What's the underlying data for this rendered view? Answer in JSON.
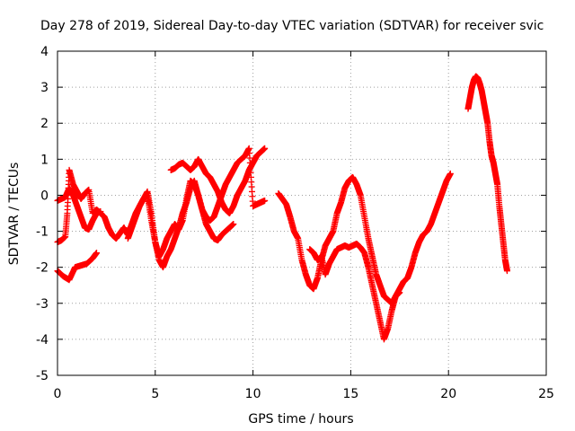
{
  "chart_data": {
    "type": "scatter",
    "title": "Day 278 of 2019, Sidereal Day-to-day VTEC variation (SDTVAR) for receiver svic",
    "xlabel": "GPS time / hours",
    "ylabel": "SDTVAR / TECUs",
    "xlim": [
      0,
      25
    ],
    "ylim": [
      -5,
      4
    ],
    "xticks": [
      0,
      5,
      10,
      15,
      20,
      25
    ],
    "yticks": [
      -5,
      -4,
      -3,
      -2,
      -1,
      0,
      1,
      2,
      3,
      4
    ],
    "grid": true,
    "marker": "+",
    "color": "#ff0000",
    "series": [
      {
        "name": "s1",
        "x": [
          0.0,
          0.3,
          0.6,
          0.9,
          1.2,
          1.5,
          1.8,
          2.0
        ],
        "y": [
          -2.1,
          -2.25,
          -2.35,
          -2.0,
          -1.95,
          -1.9,
          -1.75,
          -1.6
        ]
      },
      {
        "name": "s2",
        "x": [
          0.0,
          0.2,
          0.4,
          0.5,
          0.6,
          0.8,
          1.0,
          1.2,
          1.4,
          1.6,
          1.8,
          2.0,
          2.2,
          2.4,
          2.6,
          2.8,
          3.0,
          3.2,
          3.4,
          3.6,
          3.8,
          4.0,
          4.2,
          4.4,
          4.6,
          4.8,
          5.0,
          5.2,
          5.4,
          5.6,
          5.8,
          6.0,
          6.2,
          6.4,
          6.6,
          6.8,
          7.0,
          7.2,
          7.4,
          7.6,
          7.8,
          8.0,
          8.2,
          8.4,
          8.6,
          8.8,
          9.0
        ],
        "y": [
          -1.3,
          -1.25,
          -1.15,
          -0.5,
          0.7,
          0.3,
          0.1,
          -0.1,
          0.05,
          0.15,
          -0.5,
          -0.4,
          -0.5,
          -0.6,
          -0.9,
          -1.1,
          -1.2,
          -1.05,
          -0.9,
          -1.1,
          -0.8,
          -0.5,
          -0.3,
          -0.1,
          0.0,
          -0.7,
          -1.3,
          -1.7,
          -1.5,
          -1.2,
          -1.0,
          -0.8,
          -0.95,
          -0.7,
          -0.1,
          0.4,
          0.3,
          0.0,
          -0.4,
          -0.8,
          -1.0,
          -1.2,
          -1.25,
          -1.1,
          -1.0,
          -0.9,
          -0.8
        ]
      },
      {
        "name": "s3",
        "x": [
          0.0,
          0.2,
          0.4,
          0.6,
          0.8,
          1.0,
          1.2,
          1.4,
          1.6,
          1.8,
          2.0,
          2.2
        ],
        "y": [
          -0.15,
          -0.1,
          -0.05,
          0.2,
          0.0,
          -0.3,
          -0.6,
          -0.9,
          -0.95,
          -0.7,
          -0.5,
          -0.45
        ]
      },
      {
        "name": "s4",
        "x": [
          3.6,
          3.8,
          4.0,
          4.2,
          4.4,
          4.6,
          4.8,
          5.0,
          5.2,
          5.4,
          5.6,
          5.8,
          6.0,
          6.2,
          6.4,
          6.6,
          6.8,
          7.0,
          7.2,
          7.4,
          7.6,
          7.8,
          8.0,
          8.2,
          8.4,
          8.6,
          8.8,
          9.0,
          9.2,
          9.4,
          9.6,
          9.8,
          10.0,
          10.2,
          10.4,
          10.6
        ],
        "y": [
          -1.2,
          -0.9,
          -0.6,
          -0.3,
          -0.1,
          0.1,
          -0.5,
          -1.3,
          -1.8,
          -2.0,
          -1.7,
          -1.5,
          -1.2,
          -0.9,
          -0.5,
          -0.2,
          0.2,
          0.4,
          0.0,
          -0.4,
          -0.6,
          -0.7,
          -0.6,
          -0.3,
          0.0,
          0.3,
          0.5,
          0.7,
          0.9,
          1.0,
          1.1,
          1.3,
          -0.3,
          -0.25,
          -0.2,
          -0.15
        ]
      },
      {
        "name": "s5",
        "x": [
          5.8,
          6.0,
          6.2,
          6.4,
          6.6,
          6.8,
          7.0,
          7.2,
          7.4,
          7.6,
          7.8,
          8.0,
          8.2,
          8.4,
          8.6,
          8.8,
          9.0,
          9.2,
          9.4,
          9.6,
          9.8,
          10.0,
          10.2,
          10.4,
          10.6
        ],
        "y": [
          0.7,
          0.75,
          0.85,
          0.9,
          0.8,
          0.7,
          0.8,
          1.0,
          0.8,
          0.6,
          0.5,
          0.3,
          0.1,
          -0.2,
          -0.4,
          -0.5,
          -0.3,
          0.0,
          0.2,
          0.4,
          0.7,
          0.9,
          1.1,
          1.2,
          1.3
        ]
      },
      {
        "name": "s6",
        "x": [
          11.3,
          11.5,
          11.7,
          11.9,
          12.1,
          12.3,
          12.5,
          12.7,
          12.9,
          13.1,
          13.3,
          13.5,
          13.7,
          13.9,
          14.1,
          14.3,
          14.5,
          14.7,
          14.9,
          15.1,
          15.3,
          15.5,
          15.7,
          15.9,
          16.1,
          16.3,
          16.5,
          16.7,
          16.9,
          17.1,
          17.3,
          17.5,
          17.7,
          17.9,
          18.1,
          18.3,
          18.5,
          18.7,
          18.9,
          19.1,
          19.3,
          19.5,
          19.7,
          19.9,
          20.1
        ],
        "y": [
          0.05,
          -0.1,
          -0.25,
          -0.6,
          -1.0,
          -1.2,
          -1.8,
          -2.2,
          -2.5,
          -2.6,
          -2.3,
          -1.8,
          -1.4,
          -1.2,
          -1.0,
          -0.5,
          -0.2,
          0.2,
          0.4,
          0.5,
          0.3,
          0.0,
          -0.6,
          -1.2,
          -1.7,
          -2.2,
          -2.5,
          -2.8,
          -2.9,
          -3.0,
          -2.8,
          -2.6,
          -2.4,
          -2.3,
          -2.0,
          -1.6,
          -1.3,
          -1.1,
          -1.0,
          -0.8,
          -0.5,
          -0.2,
          0.1,
          0.4,
          0.6
        ]
      },
      {
        "name": "s7",
        "x": [
          12.9,
          13.1,
          13.3,
          13.5,
          13.7,
          13.9,
          14.1,
          14.3,
          14.5,
          14.7,
          14.9,
          15.1,
          15.3,
          15.5,
          15.7,
          15.9,
          16.1,
          16.3,
          16.5,
          16.7,
          16.9,
          17.1,
          17.3,
          17.5
        ],
        "y": [
          -1.5,
          -1.6,
          -1.8,
          -1.7,
          -2.2,
          -1.9,
          -1.7,
          -1.5,
          -1.45,
          -1.4,
          -1.45,
          -1.4,
          -1.35,
          -1.45,
          -1.6,
          -2.0,
          -2.5,
          -3.0,
          -3.5,
          -4.0,
          -3.7,
          -3.2,
          -2.8,
          -2.7
        ]
      },
      {
        "name": "s8",
        "x": [
          21.0,
          21.1,
          21.2,
          21.3,
          21.4,
          21.5,
          21.6,
          21.7,
          21.8,
          21.9,
          22.0,
          22.1,
          22.2,
          22.3,
          22.4,
          22.5,
          22.6,
          22.7,
          22.8,
          22.9,
          23.0
        ],
        "y": [
          2.4,
          2.7,
          3.0,
          3.2,
          3.3,
          3.25,
          3.1,
          2.9,
          2.6,
          2.3,
          2.0,
          1.5,
          1.1,
          0.9,
          0.6,
          0.3,
          -0.3,
          -0.8,
          -1.3,
          -1.8,
          -2.1
        ]
      }
    ]
  }
}
